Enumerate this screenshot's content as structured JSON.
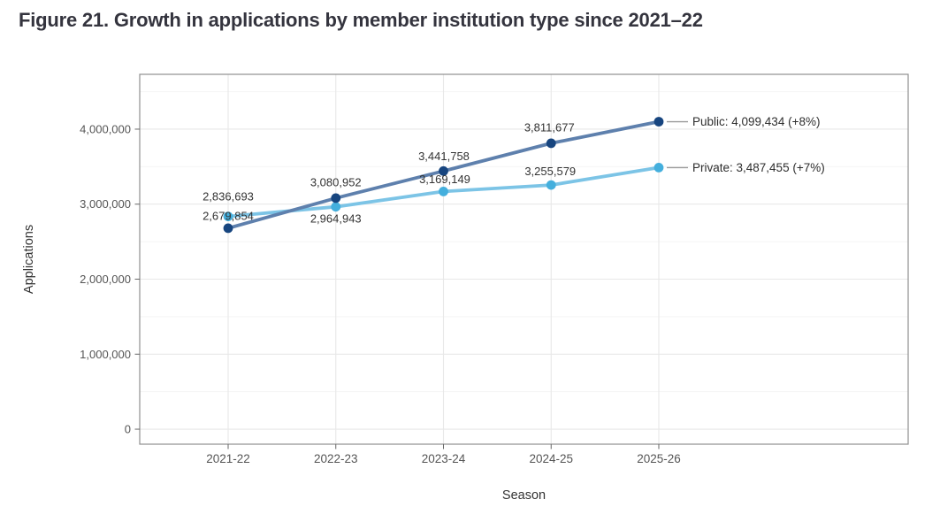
{
  "figure_title": "Figure 21. Growth in applications by member institution type since 2021–22",
  "chart_data": {
    "type": "line",
    "title": "Figure 21. Growth in applications by member institution type since 2021–22",
    "xlabel": "Season",
    "ylabel": "Applications",
    "categories": [
      "2021-22",
      "2022-23",
      "2023-24",
      "2024-25",
      "2025-26"
    ],
    "series": [
      {
        "name": "Public",
        "values": [
          2679854,
          3080952,
          3441758,
          3811677,
          4099434
        ],
        "point_labels": [
          "2,679,854",
          "3,080,952",
          "3,441,758",
          "3,811,677"
        ],
        "end_label": "Public: 4,099,434 (+8%)",
        "line_color": "#5e80ad",
        "point_color": "#17457f"
      },
      {
        "name": "Private",
        "values": [
          2836693,
          2964943,
          3169149,
          3255579,
          3487455
        ],
        "point_labels": [
          "2,836,693",
          "2,964,943",
          "3,169,149",
          "3,255,579"
        ],
        "end_label": "Private: 3,487,455 (+7%)",
        "line_color": "#7cc4e6",
        "point_color": "#44afdd"
      }
    ],
    "yticks": [
      0,
      1000000,
      2000000,
      3000000,
      4000000
    ],
    "ytick_labels": [
      "0",
      "1,000,000",
      "2,000,000",
      "3,000,000",
      "4,000,000"
    ],
    "ylim": [
      -200000,
      4731000
    ],
    "grid": {
      "horizontal": "major+minor",
      "vertical": "major"
    },
    "legend_position": "right-end-labels",
    "colors": {
      "grid_major": "#e8e8e8",
      "grid_minor": "#f5f5f5",
      "panel_border": "#8f8f8f",
      "tick": "#666666",
      "tick_label": "#555555",
      "axis_title": "#333333",
      "data_label": "#333333",
      "end_label": "#2e2e2e",
      "connector": "#9b9b9b",
      "title": "#34343e"
    }
  }
}
